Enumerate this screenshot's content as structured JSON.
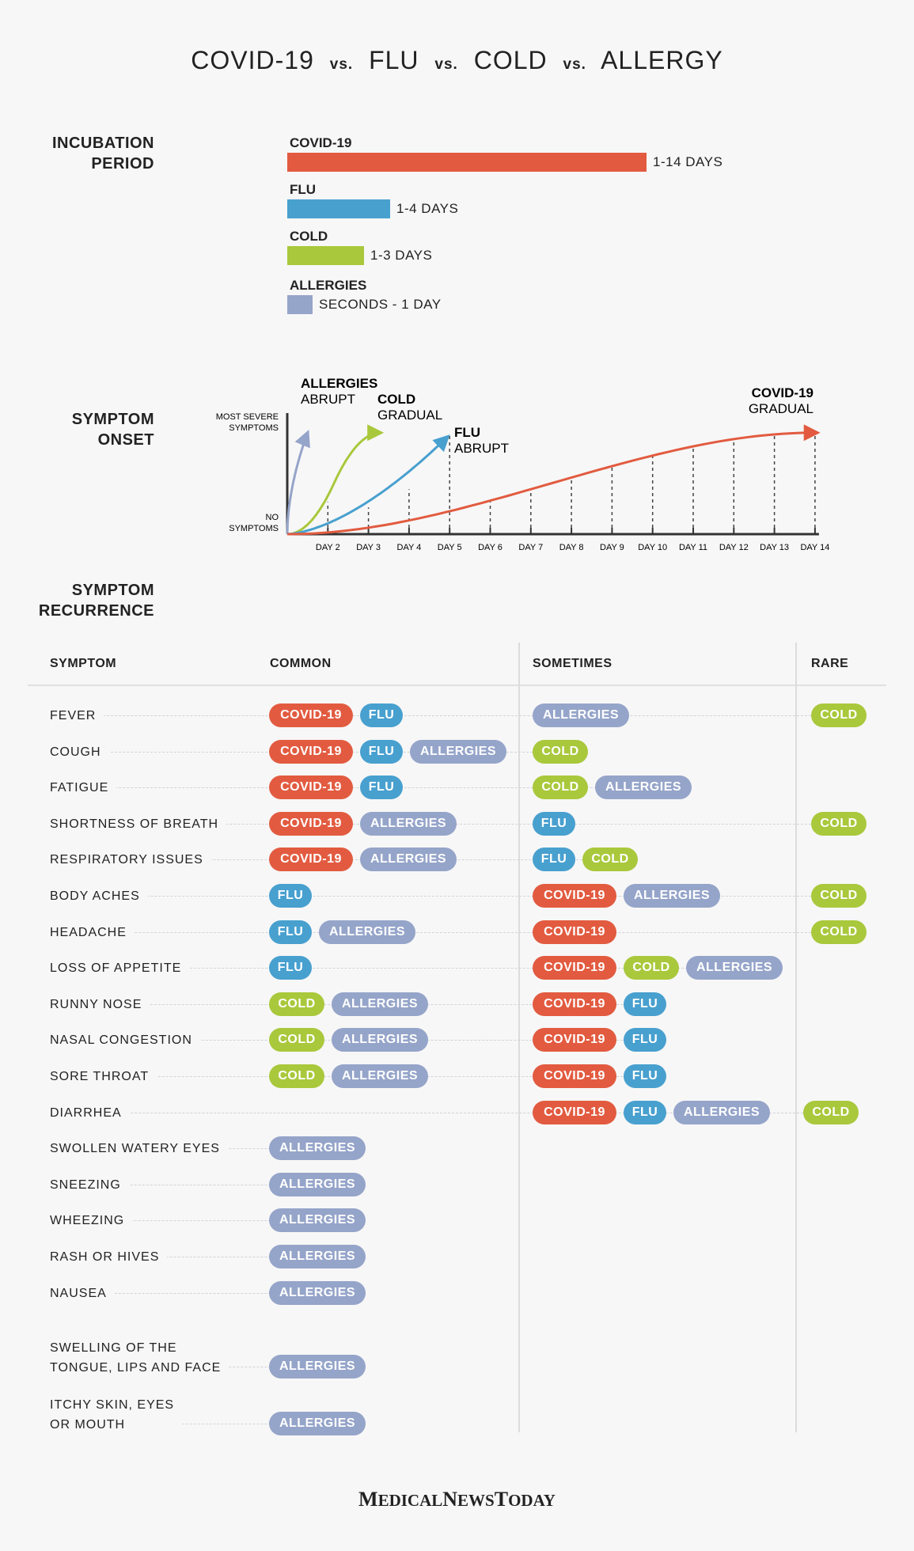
{
  "title": {
    "part1": "COVID-19",
    "vs": "vs.",
    "part2": "FLU",
    "part3": "COLD",
    "part4": "ALLERGY"
  },
  "sections": {
    "incubation": [
      "INCUBATION",
      "PERIOD"
    ],
    "onset": [
      "SYMPTOM",
      "ONSET"
    ],
    "recurrence": [
      "SYMPTOM",
      "RECURRENCE"
    ]
  },
  "incubation": {
    "bars": [
      {
        "name": "COVID-19",
        "label": "1-14 DAYS",
        "days": 14,
        "color": "#e25b40"
      },
      {
        "name": "FLU",
        "label": "1-4 DAYS",
        "days": 4,
        "color": "#48a0cf"
      },
      {
        "name": "COLD",
        "label": "1-3 DAYS",
        "days": 3,
        "color": "#a9c83c"
      },
      {
        "name": "ALLERGIES",
        "label": "SECONDS - 1 DAY",
        "days": 1,
        "color": "#95a4c9"
      }
    ]
  },
  "chart_data": {
    "type": "line",
    "title": "SYMPTOM ONSET",
    "x_ticks": [
      "DAY 2",
      "DAY 3",
      "DAY 4",
      "DAY 5",
      "DAY 6",
      "DAY 7",
      "DAY 8",
      "DAY 9",
      "DAY 10",
      "DAY 11",
      "DAY 12",
      "DAY 13",
      "DAY 14"
    ],
    "y_top_label": [
      "MOST SEVERE",
      "SYMPTOMS"
    ],
    "y_bottom_label": [
      "NO",
      "SYMPTOMS"
    ],
    "xlim": [
      1,
      14
    ],
    "ylim": [
      0,
      1
    ],
    "series": [
      {
        "name": "ALLERGIES",
        "note": "ABRUPT",
        "color": "#95a4c9",
        "peak_day": 1.55
      },
      {
        "name": "COLD",
        "note": "GRADUAL",
        "color": "#a9c83c",
        "peak_day": 3.4
      },
      {
        "name": "FLU",
        "note": "ABRUPT",
        "color": "#48a0cf",
        "peak_day": 5.0
      },
      {
        "name": "COVID-19",
        "note": "GRADUAL",
        "color": "#e25b40",
        "peak_day": 14.0
      }
    ]
  },
  "recurrence": {
    "headers": {
      "symptom": "SYMPTOM",
      "common": "COMMON",
      "sometimes": "SOMETIMES",
      "rare": "RARE"
    },
    "legend_colors": {
      "COVID-19": "#e25b40",
      "FLU": "#48a0cf",
      "COLD": "#a9c83c",
      "ALLERGIES": "#95a4c9"
    },
    "rows": [
      {
        "symptom": [
          "FEVER"
        ],
        "common": [
          "COVID-19",
          "FLU"
        ],
        "sometimes": [
          "ALLERGIES"
        ],
        "rare": [
          "COLD"
        ]
      },
      {
        "symptom": [
          "COUGH"
        ],
        "common": [
          "COVID-19",
          "FLU",
          "ALLERGIES"
        ],
        "sometimes": [
          "COLD"
        ],
        "rare": []
      },
      {
        "symptom": [
          "FATIGUE"
        ],
        "common": [
          "COVID-19",
          "FLU"
        ],
        "sometimes": [
          "COLD",
          "ALLERGIES"
        ],
        "rare": []
      },
      {
        "symptom": [
          "SHORTNESS OF BREATH"
        ],
        "common": [
          "COVID-19",
          "ALLERGIES"
        ],
        "sometimes": [
          "FLU"
        ],
        "rare": [
          "COLD"
        ]
      },
      {
        "symptom": [
          "RESPIRATORY ISSUES"
        ],
        "common": [
          "COVID-19",
          "ALLERGIES"
        ],
        "sometimes": [
          "FLU",
          "COLD"
        ],
        "rare": []
      },
      {
        "symptom": [
          "BODY ACHES"
        ],
        "common": [
          "FLU"
        ],
        "sometimes": [
          "COVID-19",
          "ALLERGIES"
        ],
        "rare": [
          "COLD"
        ]
      },
      {
        "symptom": [
          "HEADACHE"
        ],
        "common": [
          "FLU",
          "ALLERGIES"
        ],
        "sometimes": [
          "COVID-19"
        ],
        "rare": [
          "COLD"
        ]
      },
      {
        "symptom": [
          "LOSS OF APPETITE"
        ],
        "common": [
          "FLU"
        ],
        "sometimes": [
          "COVID-19",
          "COLD",
          "ALLERGIES"
        ],
        "rare": []
      },
      {
        "symptom": [
          "RUNNY NOSE"
        ],
        "common": [
          "COLD",
          "ALLERGIES"
        ],
        "sometimes": [
          "COVID-19",
          "FLU"
        ],
        "rare": []
      },
      {
        "symptom": [
          "NASAL CONGESTION"
        ],
        "common": [
          "COLD",
          "ALLERGIES"
        ],
        "sometimes": [
          "COVID-19",
          "FLU"
        ],
        "rare": []
      },
      {
        "symptom": [
          "SORE THROAT"
        ],
        "common": [
          "COLD",
          "ALLERGIES"
        ],
        "sometimes": [
          "COVID-19",
          "FLU"
        ],
        "rare": []
      },
      {
        "symptom": [
          "DIARRHEA"
        ],
        "common": [],
        "sometimes": [
          "COVID-19",
          "FLU",
          "ALLERGIES"
        ],
        "rare": [
          "COLD"
        ]
      },
      {
        "symptom": [
          "SWOLLEN WATERY EYES"
        ],
        "common": [
          "ALLERGIES"
        ],
        "sometimes": [],
        "rare": []
      },
      {
        "symptom": [
          "SNEEZING"
        ],
        "common": [
          "ALLERGIES"
        ],
        "sometimes": [],
        "rare": []
      },
      {
        "symptom": [
          "WHEEZING"
        ],
        "common": [
          "ALLERGIES"
        ],
        "sometimes": [],
        "rare": []
      },
      {
        "symptom": [
          "RASH OR HIVES"
        ],
        "common": [
          "ALLERGIES"
        ],
        "sometimes": [],
        "rare": []
      },
      {
        "symptom": [
          "NAUSEA"
        ],
        "common": [
          "ALLERGIES"
        ],
        "sometimes": [],
        "rare": []
      },
      {
        "symptom": [
          "SWELLING OF THE",
          "TONGUE, LIPS AND FACE"
        ],
        "common": [
          "ALLERGIES"
        ],
        "sometimes": [],
        "rare": []
      },
      {
        "symptom": [
          "ITCHY SKIN, EYES",
          "OR MOUTH"
        ],
        "common": [
          "ALLERGIES"
        ],
        "sometimes": [],
        "rare": []
      }
    ]
  },
  "logo": {
    "m": "M",
    "edical": "EDICAL",
    "n": "N",
    "ews": "EWS",
    "t": "T",
    "oday": "ODAY"
  }
}
